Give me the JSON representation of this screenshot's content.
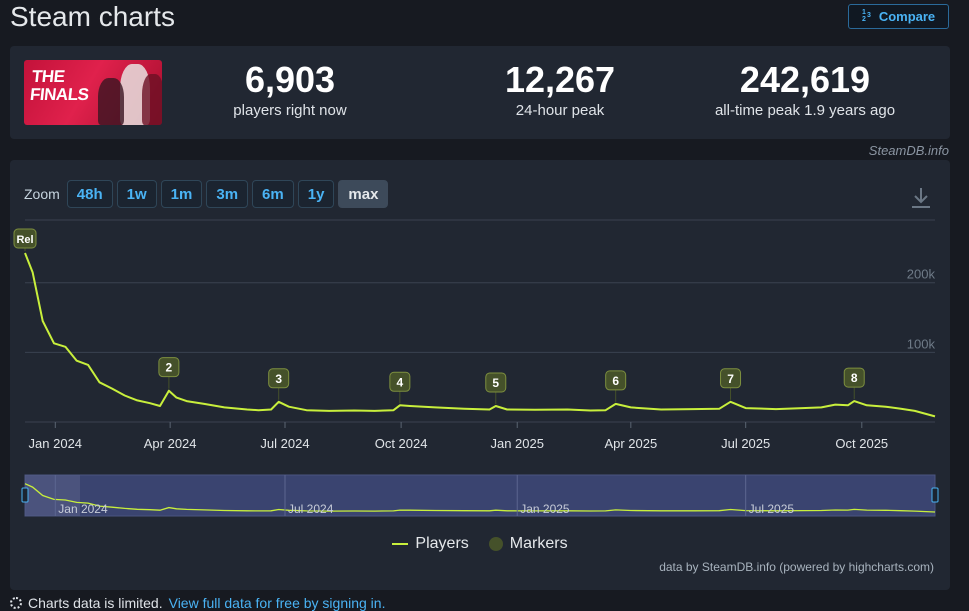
{
  "page": {
    "title": "Steam charts",
    "compare_label": "Compare",
    "compare_icon": "1/2/3"
  },
  "game": {
    "logo_text_line1": "THE",
    "logo_text_line2": "FINALS"
  },
  "stats": [
    {
      "value": "6,903",
      "label": "players right now"
    },
    {
      "value": "12,267",
      "label": "24-hour peak"
    },
    {
      "value": "242,619",
      "label": "all-time peak 1.9 years ago"
    }
  ],
  "attribution": "SteamDB.info",
  "zoom": {
    "label": "Zoom",
    "buttons": [
      "48h",
      "1w",
      "1m",
      "3m",
      "6m",
      "1y",
      "max"
    ],
    "active": "max"
  },
  "legend": {
    "players": "Players",
    "markers": "Markers"
  },
  "credits": "data by SteamDB.info (powered by highcharts.com)",
  "note": {
    "text": "Charts data is limited.",
    "link": "View full data for free by signing in."
  },
  "colors": {
    "line": "#c8ef3c",
    "marker": "#45512a",
    "navigator_bg": "#3a4470"
  },
  "chart_data": {
    "type": "line",
    "title": "",
    "ylabel": "",
    "xlabel": "",
    "y_ticks": [
      {
        "value": 100000,
        "label": "100k"
      },
      {
        "value": 200000,
        "label": "200k"
      }
    ],
    "ylim": [
      0,
      290000
    ],
    "x_range": [
      "2023-12-08",
      "2025-11-28"
    ],
    "x_ticks": [
      {
        "date": "2024-01-01",
        "label": "Jan 2024"
      },
      {
        "date": "2024-04-01",
        "label": "Apr 2024"
      },
      {
        "date": "2024-07-01",
        "label": "Jul 2024"
      },
      {
        "date": "2024-10-01",
        "label": "Oct 2024"
      },
      {
        "date": "2025-01-01",
        "label": "Jan 2025"
      },
      {
        "date": "2025-04-01",
        "label": "Apr 2025"
      },
      {
        "date": "2025-07-01",
        "label": "Jul 2025"
      },
      {
        "date": "2025-10-01",
        "label": "Oct 2025"
      }
    ],
    "navigator_ticks": [
      {
        "date": "2024-01-01",
        "label": "Jan 2024"
      },
      {
        "date": "2024-07-01",
        "label": "Jul 2024"
      },
      {
        "date": "2025-01-01",
        "label": "Jan 2025"
      },
      {
        "date": "2025-07-01",
        "label": "Jul 2025"
      }
    ],
    "grid": true,
    "legend_position": "bottom-center",
    "series": [
      {
        "name": "Players",
        "points": [
          [
            "2023-12-08",
            242619
          ],
          [
            "2023-12-14",
            215000
          ],
          [
            "2023-12-22",
            145000
          ],
          [
            "2023-12-31",
            113000
          ],
          [
            "2024-01-09",
            108000
          ],
          [
            "2024-01-18",
            88000
          ],
          [
            "2024-01-27",
            82000
          ],
          [
            "2024-02-05",
            57000
          ],
          [
            "2024-02-15",
            48000
          ],
          [
            "2024-02-25",
            38000
          ],
          [
            "2024-03-06",
            31000
          ],
          [
            "2024-03-16",
            27000
          ],
          [
            "2024-03-24",
            23000
          ],
          [
            "2024-03-31",
            45000
          ],
          [
            "2024-04-06",
            35000
          ],
          [
            "2024-04-14",
            30000
          ],
          [
            "2024-04-28",
            26000
          ],
          [
            "2024-05-14",
            21000
          ],
          [
            "2024-06-01",
            18000
          ],
          [
            "2024-06-10",
            17000
          ],
          [
            "2024-06-20",
            18000
          ],
          [
            "2024-06-26",
            29000
          ],
          [
            "2024-07-04",
            22000
          ],
          [
            "2024-07-18",
            17000
          ],
          [
            "2024-08-05",
            16000
          ],
          [
            "2024-08-25",
            16500
          ],
          [
            "2024-09-10",
            16000
          ],
          [
            "2024-09-25",
            17000
          ],
          [
            "2024-09-30",
            24000
          ],
          [
            "2024-10-08",
            23000
          ],
          [
            "2024-10-28",
            21000
          ],
          [
            "2024-11-20",
            19000
          ],
          [
            "2024-12-10",
            18000
          ],
          [
            "2024-12-15",
            23000
          ],
          [
            "2024-12-24",
            18000
          ],
          [
            "2025-01-15",
            17500
          ],
          [
            "2025-02-10",
            18000
          ],
          [
            "2025-02-28",
            16500
          ],
          [
            "2025-03-12",
            17000
          ],
          [
            "2025-03-20",
            26000
          ],
          [
            "2025-04-01",
            21000
          ],
          [
            "2025-04-25",
            18000
          ],
          [
            "2025-05-20",
            18500
          ],
          [
            "2025-06-10",
            19000
          ],
          [
            "2025-06-19",
            29000
          ],
          [
            "2025-07-01",
            20000
          ],
          [
            "2025-07-25",
            18500
          ],
          [
            "2025-08-15",
            20000
          ],
          [
            "2025-08-30",
            21000
          ],
          [
            "2025-09-10",
            25000
          ],
          [
            "2025-09-20",
            24000
          ],
          [
            "2025-09-25",
            30000
          ],
          [
            "2025-10-05",
            24000
          ],
          [
            "2025-10-20",
            22000
          ],
          [
            "2025-11-01",
            19000
          ],
          [
            "2025-11-12",
            16000
          ],
          [
            "2025-11-28",
            8000
          ]
        ]
      }
    ],
    "markers": [
      {
        "label": "Rel",
        "date": "2023-12-08",
        "value": 242619
      },
      {
        "label": "2",
        "date": "2024-03-31",
        "value": 45000
      },
      {
        "label": "3",
        "date": "2024-06-26",
        "value": 29000
      },
      {
        "label": "4",
        "date": "2024-09-30",
        "value": 24000
      },
      {
        "label": "5",
        "date": "2024-12-15",
        "value": 23000
      },
      {
        "label": "6",
        "date": "2025-03-20",
        "value": 26000
      },
      {
        "label": "7",
        "date": "2025-06-19",
        "value": 29000
      },
      {
        "label": "8",
        "date": "2025-09-25",
        "value": 30000
      }
    ]
  }
}
